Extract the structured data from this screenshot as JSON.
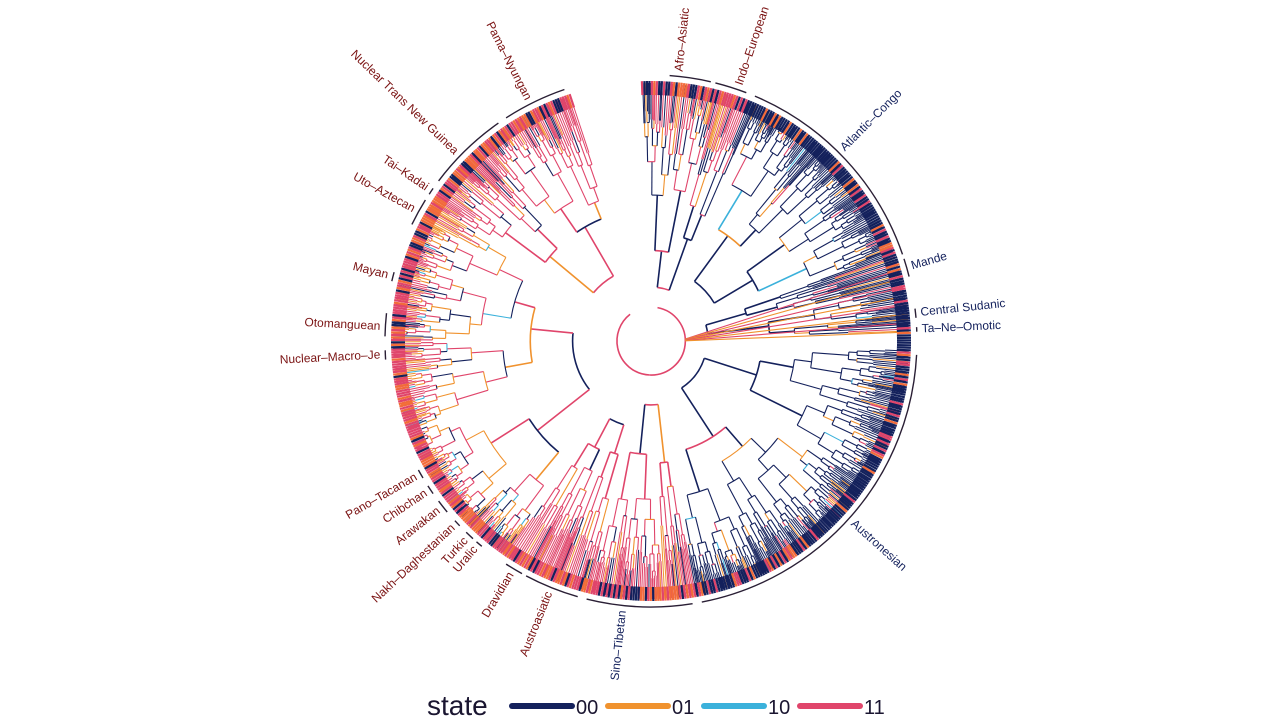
{
  "figure": {
    "type": "circular-phylogenetic-tree",
    "colors": {
      "00": "#14215c",
      "01": "#f0922e",
      "10": "#3bb1db",
      "11": "#e0456b",
      "dark_red": "#7a1212",
      "navy": "#14215c",
      "tip_orange": "#f26b3a"
    }
  },
  "clades": [
    {
      "name": "Afro–Asiatic",
      "color": "#7a1212",
      "a0": -86,
      "a1": -77,
      "mid": -84
    },
    {
      "name": "Indo–European",
      "color": "#7a1212",
      "a0": -76,
      "a1": -69,
      "mid": -71
    },
    {
      "name": "Atlantic–Congo",
      "color": "#14215c",
      "a0": -67,
      "a1": -19,
      "mid": -45
    },
    {
      "name": "Mande",
      "color": "#14215c",
      "a0": -18,
      "a1": -14,
      "mid": -16
    },
    {
      "name": "Central Sudanic",
      "color": "#14215c",
      "a0": -7,
      "a1": -5,
      "mid": -6
    },
    {
      "name": "Ta–Ne–Omotic",
      "color": "#14215c",
      "a0": -3,
      "a1": -2,
      "mid": -2.5
    },
    {
      "name": "Austronesian",
      "color": "#14215c",
      "a0": 3,
      "a1": 79,
      "mid": 42
    },
    {
      "name": "Sino–Tibetan",
      "color": "#14215c",
      "a0": 81,
      "a1": 104,
      "mid": 96
    },
    {
      "name": "Austroasiatic",
      "color": "#7a1212",
      "a0": 106,
      "a1": 118,
      "mid": 112
    },
    {
      "name": "Dravidian",
      "color": "#7a1212",
      "a0": 119,
      "a1": 123,
      "mid": 121
    },
    {
      "name": "Uralic",
      "color": "#7a1212",
      "a0": 129.5,
      "a1": 131,
      "mid": 130.3
    },
    {
      "name": "Turkic",
      "color": "#7a1212",
      "a0": 132,
      "a1": 134,
      "mid": 133
    },
    {
      "name": "Nakh–Daghestanian",
      "color": "#7a1212",
      "a0": 136,
      "a1": 137.5,
      "mid": 136.8
    },
    {
      "name": "Arawakan",
      "color": "#7a1212",
      "a0": 140,
      "a1": 143,
      "mid": 141.5
    },
    {
      "name": "Chibchan",
      "color": "#7a1212",
      "a0": 145,
      "a1": 147,
      "mid": 146
    },
    {
      "name": "Pano–Tacanan",
      "color": "#7a1212",
      "a0": 149,
      "a1": 151,
      "mid": 150
    },
    {
      "name": "Nuclear–Macro–Je",
      "color": "#7a1212",
      "a0": 176,
      "a1": 178,
      "mid": 177
    },
    {
      "name": "Otomanguean",
      "color": "#7a1212",
      "a0": 181,
      "a1": 186,
      "mid": 183
    },
    {
      "name": "Mayan",
      "color": "#7a1212",
      "a0": 193,
      "a1": 195,
      "mid": 194
    },
    {
      "name": "Uto–Aztecan",
      "color": "#7a1212",
      "a0": 206,
      "a1": 212,
      "mid": 209
    },
    {
      "name": "Tai–Kadai",
      "color": "#7a1212",
      "a0": 213.5,
      "a1": 215,
      "mid": 214.3
    },
    {
      "name": "Nuclear Trans New Guinea",
      "color": "#7a1212",
      "a0": 217,
      "a1": 235,
      "mid": 224
    },
    {
      "name": "Pama–Nyungan",
      "color": "#7a1212",
      "a0": 237,
      "a1": 251,
      "mid": 243
    }
  ],
  "legend": {
    "title": "state",
    "items": [
      {
        "label": "00",
        "color": "#14215c"
      },
      {
        "label": "01",
        "color": "#f0922e"
      },
      {
        "label": "10",
        "color": "#3bb1db"
      },
      {
        "label": "11",
        "color": "#e0456b"
      }
    ]
  }
}
